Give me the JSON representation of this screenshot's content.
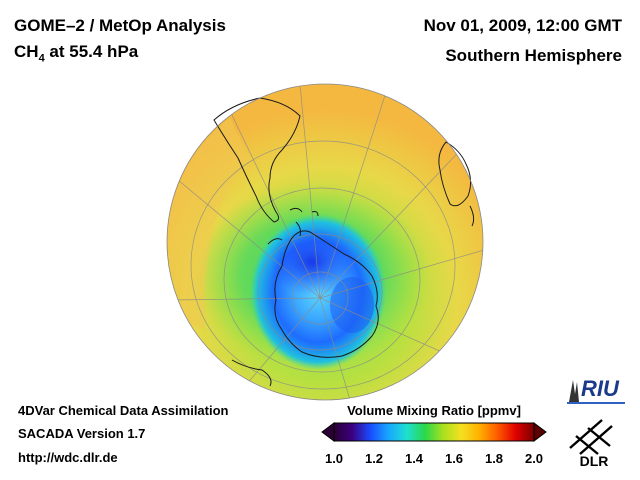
{
  "header": {
    "title_line1": "GOME–2 / MetOp Analysis",
    "species": "CH",
    "species_sub": "4",
    "pressure_text": " at 55.4 hPa",
    "date": "Nov 01, 2009, 12:00 GMT",
    "region": "Southern Hemisphere"
  },
  "footer": {
    "line1": "4DVar Chemical Data Assimilation",
    "line2": "SACADA Version 1.7",
    "url": "http://wdc.dlr.de"
  },
  "colorbar": {
    "title": "Volume Mixing Ratio [ppmv]",
    "ticks": [
      "1.0",
      "1.2",
      "1.4",
      "1.6",
      "1.8",
      "2.0"
    ],
    "min": 1.0,
    "max": 2.0,
    "colors": [
      "#2a0035",
      "#3a0080",
      "#1a4cff",
      "#18a8ff",
      "#1ee0d0",
      "#2ad84a",
      "#a8e020",
      "#f4e020",
      "#ffb000",
      "#ff5a00",
      "#e00000",
      "#7a0000"
    ]
  },
  "logos": {
    "riu": "RIU",
    "dlr": "DLR"
  }
}
